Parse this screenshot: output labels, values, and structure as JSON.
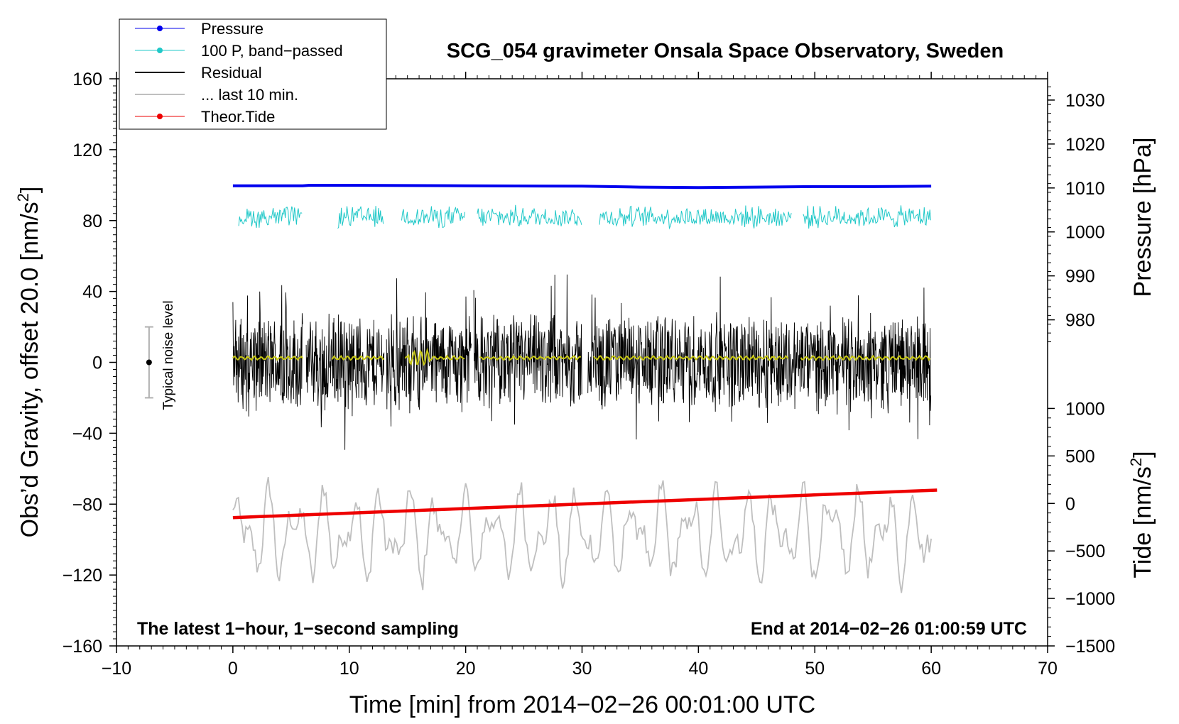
{
  "chart_data": {
    "type": "line",
    "title": "SCG_054 gravimeter Onsala Space Observatory, Sweden",
    "xlabel": "Time [min] from 2014−02−26 00:01:00 UTC",
    "ylabel_left": "Obs’d Gravity, offset 20.0 [nm/s²]",
    "ylabel_left_parts": {
      "main": "Obs’d Gravity, offset 20.0 [nm/s",
      "sup": "2",
      "end": "]"
    },
    "ylabel_pressure": "Pressure [hPa]",
    "ylabel_tide_parts": {
      "main": "Tide [nm/s",
      "sup": "2",
      "end": "]"
    },
    "xlim": [
      -10,
      70
    ],
    "ylim_left": [
      -160,
      160
    ],
    "x_ticks": [
      -10,
      0,
      10,
      20,
      30,
      40,
      50,
      60,
      70
    ],
    "x_tick_labels": [
      "−10",
      "0",
      "10",
      "20",
      "30",
      "40",
      "50",
      "60",
      "70"
    ],
    "y_ticks_left": [
      -160,
      -120,
      -80,
      -40,
      0,
      40,
      80,
      120,
      160
    ],
    "y_tick_labels_left": [
      "−160",
      "−120",
      "−80",
      "−40",
      "0",
      "40",
      "80",
      "120",
      "160"
    ],
    "pressure_axis": {
      "ticks": [
        980,
        990,
        1000,
        1010,
        1020,
        1030
      ],
      "tick_labels": [
        "980",
        "990",
        "1000",
        "1010",
        "1020",
        "1030"
      ],
      "left_value_ref": [
        [
          1030,
          148
        ],
        [
          980,
          24
        ]
      ]
    },
    "tide_axis": {
      "ticks": [
        -1500,
        -1000,
        -500,
        0,
        500,
        1000
      ],
      "tick_labels": [
        "−1500",
        "−1000",
        "−500",
        "0",
        "500",
        "1000"
      ],
      "left_value_ref": [
        [
          1000,
          -26
        ],
        [
          -1500,
          -160
        ]
      ]
    },
    "annotations": {
      "left_note": "The latest 1−hour, 1−second sampling",
      "right_note": "End at 2014−02−26 01:00:59 UTC",
      "noise_label": "Typical noise level",
      "noise_bar": {
        "x": -7.2,
        "center": 0,
        "half_range": 20
      }
    },
    "legend": [
      {
        "name": "Pressure",
        "color": "#0000ee",
        "marker": true
      },
      {
        "name": "100 P, band−passed",
        "color": "#20c8c8",
        "marker": true
      },
      {
        "name": "Residual",
        "color": "#000000",
        "marker": false
      },
      {
        "name": "... last 10 min.",
        "color": "#bfbfbf",
        "marker": false
      },
      {
        "name": "Theor.Tide",
        "color": "#ee0000",
        "marker": true
      }
    ],
    "series": [
      {
        "name": "Pressure",
        "color": "#0000ee",
        "axis": "pressure",
        "x": [
          0,
          6,
          6.5,
          10,
          20,
          30,
          35,
          40,
          45,
          50,
          55,
          60
        ],
        "values": [
          1010.5,
          1010.5,
          1010.6,
          1010.6,
          1010.5,
          1010.4,
          1010.2,
          1010.1,
          1010.2,
          1010.3,
          1010.3,
          1010.4
        ]
      },
      {
        "name": "100 P, band−passed",
        "color": "#20c8c8",
        "axis": "left",
        "segments": [
          [
            0.5,
            6
          ],
          [
            9,
            13
          ],
          [
            14.5,
            20
          ],
          [
            21,
            30
          ],
          [
            31.5,
            48
          ],
          [
            49,
            60
          ]
        ],
        "level": 82,
        "amplitude": 7
      },
      {
        "name": "Residual",
        "color": "#000000",
        "axis": "left",
        "segments": [
          [
            0,
            6
          ],
          [
            6.3,
            13
          ],
          [
            13.2,
            20.5
          ],
          [
            20.7,
            30
          ],
          [
            30.5,
            60
          ]
        ],
        "level": 0,
        "amplitude": 30,
        "peak_max": 52,
        "peak_min": -50
      },
      {
        "name": "Residual (smoothed)",
        "color": "#c8c814",
        "axis": "left",
        "segments": [
          [
            0,
            6
          ],
          [
            8.5,
            13
          ],
          [
            14.8,
            20
          ],
          [
            21.2,
            30
          ],
          [
            31,
            47.8
          ],
          [
            48.8,
            60
          ]
        ],
        "level": 2.5
      },
      {
        "name": "... last 10 min.",
        "color": "#bfbfbf",
        "axis": "left",
        "x_range": [
          0,
          60
        ],
        "level": -97,
        "amplitude": 22,
        "peak_max": -52,
        "peak_min": -145
      },
      {
        "name": "Theor.Tide",
        "color": "#ee0000",
        "axis": "tide",
        "x": [
          0,
          60.5
        ],
        "values": [
          -150,
          140
        ]
      }
    ]
  }
}
